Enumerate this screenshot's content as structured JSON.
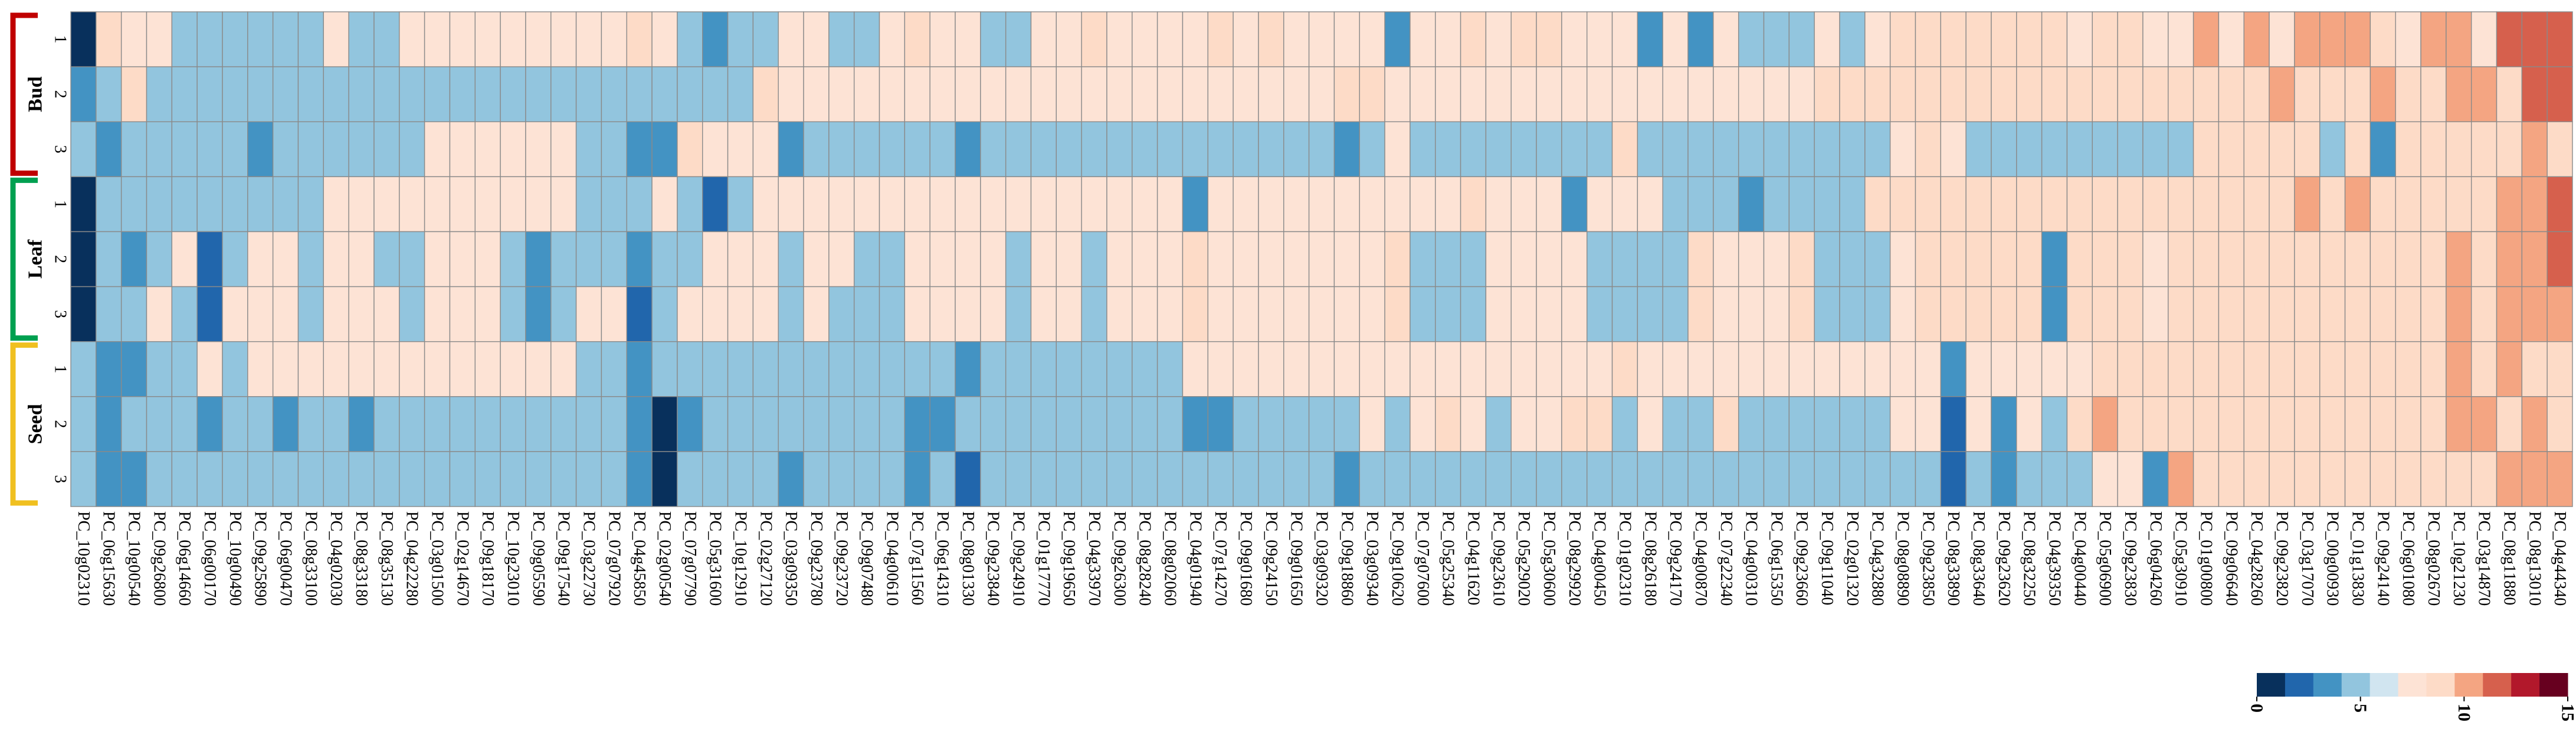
{
  "chart_data": {
    "type": "heatmap",
    "title": "",
    "colorbar": {
      "colors": [
        "#08305c",
        "#2166ac",
        "#4393c3",
        "#92c5de",
        "#d1e5f0",
        "#fde3d5",
        "#fddbc7",
        "#f4a582",
        "#d6604d",
        "#b2182b",
        "#67001f"
      ],
      "min": 0,
      "max": 15,
      "tick_labels": [
        "0",
        "5",
        "10",
        "15"
      ],
      "tick_values": [
        0,
        5,
        10,
        15
      ]
    },
    "tissues": [
      {
        "name": "Bud",
        "color": "#c00000",
        "rows": [
          "1",
          "2",
          "3"
        ]
      },
      {
        "name": "Leaf",
        "color": "#00a050",
        "rows": [
          "1",
          "2",
          "3"
        ]
      },
      {
        "name": "Seed",
        "color": "#f0c020",
        "rows": [
          "1",
          "2",
          "3"
        ]
      }
    ],
    "columns": [
      "PC_10g02310",
      "PC_06g15630",
      "PC_10g00540",
      "PC_09g26800",
      "PC_06g14660",
      "PC_06g00170",
      "PC_10g00490",
      "PC_09g25890",
      "PC_06g00470",
      "PC_08g33100",
      "PC_04g02030",
      "PC_08g33180",
      "PC_08g35130",
      "PC_04g22280",
      "PC_03g01500",
      "PC_02g14670",
      "PC_09g18170",
      "PC_10g23010",
      "PC_09g05590",
      "PC_09g17540",
      "PC_03g22730",
      "PC_07g07920",
      "PC_04g45850",
      "PC_02g00540",
      "PC_07g07790",
      "PC_05g31600",
      "PC_10g12910",
      "PC_02g27120",
      "PC_03g09350",
      "PC_09g23780",
      "PC_09g23720",
      "PC_09g07480",
      "PC_04g00610",
      "PC_07g11560",
      "PC_06g14310",
      "PC_08g01330",
      "PC_09g23840",
      "PC_09g24910",
      "PC_01g17770",
      "PC_09g19650",
      "PC_04g33970",
      "PC_09g26300",
      "PC_08g28240",
      "PC_08g02060",
      "PC_04g01940",
      "PC_07g14270",
      "PC_09g01680",
      "PC_09g24150",
      "PC_09g01650",
      "PC_03g09320",
      "PC_09g18860",
      "PC_03g09340",
      "PC_09g10620",
      "PC_07g07600",
      "PC_05g25340",
      "PC_04g11620",
      "PC_09g23610",
      "PC_05g29020",
      "PC_05g30600",
      "PC_08g29920",
      "PC_04g00450",
      "PC_01g02310",
      "PC_08g26180",
      "PC_09g24170",
      "PC_04g00870",
      "PC_07g22340",
      "PC_04g00310",
      "PC_06g15350",
      "PC_09g23660",
      "PC_09g11040",
      "PC_02g01320",
      "PC_04g32880",
      "PC_08g08890",
      "PC_09g23850",
      "PC_08g33890",
      "PC_08g33640",
      "PC_09g23620",
      "PC_08g32250",
      "PC_04g39350",
      "PC_04g00440",
      "PC_05g06900",
      "PC_09g23830",
      "PC_06g04260",
      "PC_05g30910",
      "PC_01g00800",
      "PC_09g06640",
      "PC_04g28260",
      "PC_09g23820",
      "PC_03g17070",
      "PC_00g00930",
      "PC_01g13830",
      "PC_09g24140",
      "PC_06g01080",
      "PC_08g02670",
      "PC_10g21230",
      "PC_03g14870",
      "PC_08g11880",
      "PC_08g13010",
      "PC_04g44340"
    ],
    "values": [
      [
        1,
        9,
        8,
        8,
        5,
        5,
        5,
        5,
        5,
        5,
        8,
        5,
        5,
        8,
        8,
        8,
        8,
        8,
        8,
        8,
        8,
        8,
        9,
        8,
        5,
        4,
        5,
        5,
        8,
        8,
        5,
        5,
        8,
        9,
        8,
        8,
        5,
        5,
        8,
        8,
        9,
        8,
        8,
        8,
        8,
        9,
        8,
        9,
        8,
        8,
        8,
        8,
        4,
        8,
        8,
        9,
        8,
        9,
        9,
        8,
        8,
        8,
        4,
        8,
        4,
        8,
        5,
        5,
        5,
        8,
        5,
        8,
        9,
        9,
        9,
        9,
        9,
        9,
        9,
        8,
        9,
        9,
        8,
        8,
        10,
        8,
        10,
        8,
        10,
        10,
        10,
        9,
        8,
        10,
        10,
        8,
        11,
        12,
        12
      ],
      [
        3,
        5,
        9,
        5,
        5,
        5,
        5,
        5,
        5,
        5,
        5,
        5,
        5,
        5,
        5,
        5,
        5,
        5,
        5,
        5,
        5,
        5,
        5,
        5,
        5,
        5,
        5,
        9,
        8,
        8,
        8,
        8,
        8,
        8,
        8,
        8,
        8,
        8,
        8,
        8,
        8,
        8,
        8,
        8,
        8,
        8,
        8,
        8,
        8,
        8,
        9,
        9,
        8,
        8,
        8,
        8,
        8,
        8,
        8,
        8,
        8,
        8,
        8,
        8,
        8,
        8,
        8,
        8,
        8,
        9,
        9,
        9,
        9,
        9,
        9,
        9,
        9,
        9,
        9,
        9,
        9,
        9,
        9,
        9,
        9,
        9,
        9,
        10,
        9,
        9,
        9,
        10,
        9,
        9,
        10,
        10,
        9,
        11,
        11
      ],
      [
        5,
        4,
        5,
        5,
        5,
        5,
        5,
        4,
        5,
        5,
        5,
        5,
        5,
        5,
        8,
        8,
        8,
        8,
        8,
        8,
        5,
        5,
        4,
        3,
        9,
        8,
        8,
        8,
        4,
        5,
        5,
        5,
        5,
        5,
        5,
        4,
        5,
        5,
        5,
        5,
        5,
        5,
        5,
        5,
        5,
        5,
        5,
        5,
        5,
        5,
        4,
        5,
        8,
        5,
        5,
        5,
        5,
        5,
        5,
        5,
        5,
        9,
        5,
        5,
        5,
        5,
        5,
        5,
        5,
        5,
        5,
        5,
        8,
        9,
        8,
        5,
        5,
        5,
        5,
        5,
        5,
        5,
        5,
        5,
        9,
        9,
        9,
        9,
        9,
        5,
        9,
        4,
        9,
        9,
        9,
        9,
        9,
        10,
        9
      ],
      [
        1,
        5,
        5,
        5,
        5,
        5,
        5,
        5,
        5,
        5,
        8,
        8,
        8,
        8,
        8,
        8,
        8,
        8,
        8,
        8,
        5,
        5,
        5,
        8,
        5,
        2,
        5,
        8,
        8,
        8,
        8,
        8,
        8,
        8,
        8,
        8,
        8,
        8,
        8,
        8,
        8,
        8,
        8,
        8,
        4,
        8,
        8,
        8,
        8,
        8,
        8,
        8,
        8,
        8,
        8,
        9,
        8,
        8,
        8,
        4,
        8,
        8,
        8,
        5,
        5,
        5,
        3,
        5,
        5,
        5,
        5,
        9,
        9,
        9,
        9,
        9,
        9,
        9,
        9,
        9,
        9,
        9,
        9,
        9,
        9,
        9,
        9,
        9,
        10,
        9,
        10,
        9,
        9,
        9,
        9,
        9,
        10,
        10,
        12
      ],
      [
        1,
        5,
        4,
        5,
        8,
        2,
        5,
        8,
        8,
        5,
        8,
        8,
        5,
        5,
        8,
        8,
        8,
        5,
        4,
        5,
        5,
        5,
        3,
        5,
        5,
        8,
        8,
        8,
        5,
        8,
        8,
        5,
        5,
        8,
        8,
        8,
        8,
        5,
        8,
        8,
        5,
        8,
        8,
        8,
        9,
        8,
        8,
        8,
        8,
        8,
        8,
        8,
        9,
        5,
        5,
        5,
        8,
        8,
        8,
        8,
        5,
        5,
        5,
        5,
        9,
        8,
        8,
        8,
        9,
        5,
        5,
        5,
        8,
        9,
        9,
        9,
        9,
        9,
        4,
        9,
        9,
        9,
        8,
        9,
        9,
        9,
        9,
        9,
        9,
        9,
        9,
        9,
        9,
        9,
        10,
        9,
        10,
        10,
        11
      ],
      [
        1,
        5,
        5,
        8,
        5,
        2,
        8,
        8,
        8,
        5,
        8,
        8,
        8,
        5,
        8,
        8,
        8,
        5,
        4,
        5,
        8,
        8,
        2,
        5,
        8,
        8,
        8,
        8,
        5,
        8,
        5,
        5,
        5,
        8,
        8,
        8,
        8,
        5,
        8,
        8,
        5,
        8,
        8,
        8,
        9,
        8,
        8,
        8,
        8,
        8,
        8,
        8,
        9,
        5,
        5,
        5,
        8,
        8,
        8,
        8,
        5,
        5,
        5,
        5,
        9,
        8,
        8,
        8,
        9,
        5,
        5,
        5,
        8,
        9,
        9,
        9,
        9,
        9,
        4,
        9,
        9,
        9,
        8,
        9,
        9,
        9,
        9,
        9,
        9,
        9,
        9,
        9,
        9,
        9,
        10,
        9,
        10,
        10,
        10
      ],
      [
        5,
        4,
        4,
        5,
        5,
        8,
        5,
        8,
        8,
        8,
        8,
        8,
        8,
        8,
        8,
        8,
        8,
        8,
        8,
        8,
        5,
        5,
        4,
        5,
        5,
        5,
        5,
        5,
        5,
        5,
        5,
        5,
        5,
        5,
        5,
        3,
        5,
        5,
        5,
        5,
        5,
        5,
        5,
        5,
        8,
        8,
        8,
        8,
        8,
        8,
        8,
        8,
        8,
        8,
        8,
        8,
        8,
        8,
        8,
        8,
        8,
        9,
        8,
        8,
        8,
        8,
        8,
        8,
        8,
        8,
        8,
        8,
        8,
        8,
        4,
        8,
        8,
        8,
        8,
        8,
        9,
        9,
        9,
        9,
        9,
        9,
        9,
        9,
        9,
        9,
        9,
        9,
        9,
        9,
        10,
        9,
        10,
        9,
        9
      ],
      [
        5,
        4,
        5,
        5,
        5,
        3,
        5,
        5,
        4,
        5,
        5,
        4,
        5,
        5,
        5,
        5,
        5,
        5,
        5,
        5,
        5,
        5,
        4,
        1,
        4,
        5,
        5,
        5,
        5,
        5,
        5,
        5,
        5,
        4,
        4,
        5,
        5,
        5,
        5,
        5,
        5,
        5,
        5,
        5,
        4,
        3,
        5,
        5,
        5,
        5,
        5,
        8,
        5,
        8,
        9,
        8,
        5,
        8,
        8,
        9,
        9,
        5,
        8,
        5,
        5,
        9,
        5,
        5,
        5,
        5,
        5,
        5,
        8,
        8,
        2,
        8,
        4,
        8,
        5,
        9,
        10,
        9,
        9,
        9,
        9,
        9,
        9,
        9,
        9,
        9,
        9,
        9,
        9,
        9,
        10,
        10,
        9,
        10,
        9
      ],
      [
        5,
        4,
        4,
        5,
        5,
        5,
        5,
        5,
        5,
        5,
        5,
        5,
        5,
        5,
        5,
        5,
        5,
        5,
        5,
        5,
        5,
        5,
        3,
        1,
        5,
        5,
        5,
        5,
        4,
        5,
        5,
        5,
        5,
        4,
        5,
        2,
        5,
        5,
        5,
        5,
        5,
        5,
        5,
        5,
        5,
        5,
        5,
        5,
        5,
        5,
        4,
        5,
        5,
        5,
        5,
        5,
        5,
        5,
        5,
        5,
        5,
        5,
        5,
        5,
        5,
        5,
        5,
        5,
        5,
        5,
        5,
        5,
        5,
        5,
        2,
        5,
        4,
        5,
        5,
        5,
        8,
        8,
        4,
        10,
        9,
        9,
        9,
        9,
        9,
        9,
        9,
        9,
        9,
        9,
        9,
        9,
        10,
        10,
        10
      ]
    ]
  }
}
